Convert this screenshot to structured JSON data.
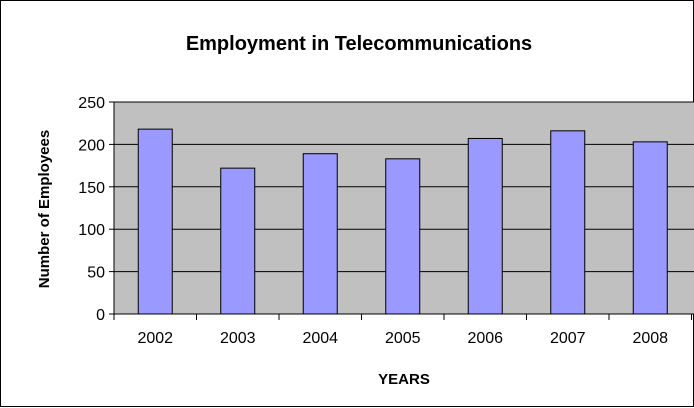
{
  "chart_data": {
    "type": "bar",
    "title": "Employment in Telecommunications",
    "xlabel": "YEARS",
    "ylabel": "Number of Employees",
    "categories": [
      "2002",
      "2003",
      "2004",
      "2005",
      "2006",
      "2007",
      "2008"
    ],
    "values": [
      218,
      172,
      189,
      183,
      207,
      216,
      203
    ],
    "ylim": [
      0,
      250
    ],
    "yticks": [
      0,
      50,
      100,
      150,
      200,
      250
    ],
    "grid": true,
    "legend": "none",
    "colors": {
      "plot_background": "#c0c0c0",
      "bar_fill": "#9999ff",
      "bar_stroke": "#000000",
      "gridline": "#000000"
    }
  }
}
